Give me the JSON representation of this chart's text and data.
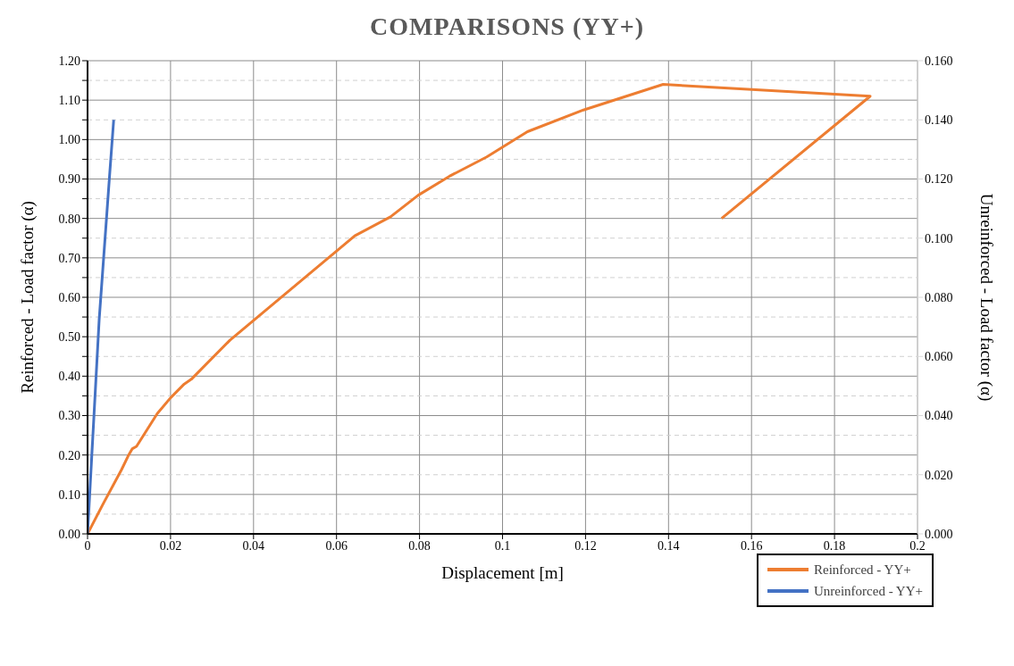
{
  "chart_data": {
    "type": "line",
    "title": "COMPARISONS (YY+)",
    "xlabel": "Displacement [m]",
    "ylabel": "Reinforced - Load factor (α)",
    "y2label": "Unreinforced - Load factor (α)",
    "series": [
      {
        "name": "Reinforced - YY+",
        "color": "#ed7d31",
        "x": [
          0,
          0.0037,
          0.0082,
          0.0098,
          0.0108,
          0.0118,
          0.0168,
          0.02,
          0.0233,
          0.025,
          0.0343,
          0.0386,
          0.0644,
          0.073,
          0.0797,
          0.0872,
          0.0962,
          0.106,
          0.1195,
          0.1387,
          0.1886,
          0.1528
        ],
        "values": [
          0,
          0.075,
          0.163,
          0.198,
          0.216,
          0.222,
          0.305,
          0.345,
          0.38,
          0.392,
          0.491,
          0.529,
          0.756,
          0.804,
          0.859,
          0.907,
          0.956,
          1.02,
          1.075,
          1.14,
          1.11,
          0.8
        ]
      },
      {
        "name": "Unreinforced - YY+",
        "color": "#4472c4",
        "axis": "y2",
        "x": [
          0,
          0.0028,
          0.0053,
          0.0063
        ],
        "values": [
          0,
          0.0724,
          0.121,
          0.14
        ]
      }
    ],
    "xlim": [
      0,
      0.2
    ],
    "xticks": [
      0,
      0.02,
      0.04,
      0.06,
      0.08,
      0.1,
      0.12,
      0.14,
      0.16,
      0.18,
      0.2
    ],
    "ylim": [
      0,
      1.2
    ],
    "yticks": [
      {
        "value": 0,
        "label": "0.00"
      },
      {
        "value": 0.05,
        "label": null
      },
      {
        "value": 0.1,
        "label": "0.10"
      },
      {
        "value": 0.15,
        "label": null
      },
      {
        "value": 0.2,
        "label": "0.20"
      },
      {
        "value": 0.25,
        "label": null
      },
      {
        "value": 0.3,
        "label": "0.30"
      },
      {
        "value": 0.35,
        "label": null
      },
      {
        "value": 0.4,
        "label": "0.40"
      },
      {
        "value": 0.45,
        "label": null
      },
      {
        "value": 0.5,
        "label": "0.50"
      },
      {
        "value": 0.55,
        "label": null
      },
      {
        "value": 0.6,
        "label": "0.60"
      },
      {
        "value": 0.65,
        "label": null
      },
      {
        "value": 0.7,
        "label": "0.70"
      },
      {
        "value": 0.75,
        "label": null
      },
      {
        "value": 0.8,
        "label": "0.80"
      },
      {
        "value": 0.85,
        "label": null
      },
      {
        "value": 0.9,
        "label": "0.90"
      },
      {
        "value": 0.95,
        "label": null
      },
      {
        "value": 1,
        "label": "1.00"
      },
      {
        "value": 1.05,
        "label": null
      },
      {
        "value": 1.1,
        "label": "1.10"
      },
      {
        "value": 1.15,
        "label": null
      },
      {
        "value": 1.2,
        "label": "1.20"
      }
    ],
    "y2lim": [
      0,
      0.16
    ],
    "y2ticks": [
      {
        "value": 0,
        "label": "0.000"
      },
      {
        "value": 0.02,
        "label": "0.020"
      },
      {
        "value": 0.04,
        "label": "0.040"
      },
      {
        "value": 0.06,
        "label": "0.060"
      },
      {
        "value": 0.08,
        "label": "0.080"
      },
      {
        "value": 0.1,
        "label": "0.100"
      },
      {
        "value": 0.12,
        "label": "0.120"
      },
      {
        "value": 0.14,
        "label": "0.140"
      },
      {
        "value": 0.16,
        "label": "0.160"
      }
    ],
    "grid": true,
    "legend": "bottom right",
    "marker": "none",
    "line_style": "solid"
  }
}
